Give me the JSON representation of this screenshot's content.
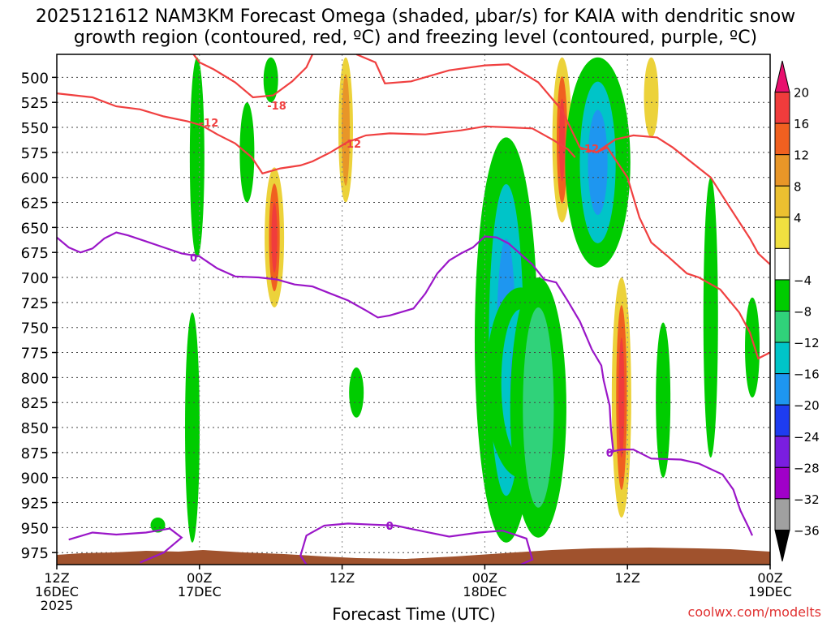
{
  "chart_data": {
    "type": "heatmap",
    "title_line1": "2025121612 NAM3KM Forecast Omega (shaded, μbar/s) for KAIA with dendritic snow",
    "title_line2": "growth region (contoured, red, ºC) and freezing level (contoured, purple, ºC)",
    "xlabel": "Forecast Time (UTC)",
    "credit": "coolwx.com/modelts",
    "x_ticks": [
      {
        "hours": 0,
        "line1": "12Z",
        "line2": "16DEC",
        "line3": "2025"
      },
      {
        "hours": 12,
        "line1": "00Z",
        "line2": "17DEC",
        "line3": ""
      },
      {
        "hours": 24,
        "line1": "12Z",
        "line2": "",
        "line3": ""
      },
      {
        "hours": 36,
        "line1": "00Z",
        "line2": "18DEC",
        "line3": ""
      },
      {
        "hours": 48,
        "line1": "12Z",
        "line2": "",
        "line3": ""
      },
      {
        "hours": 60,
        "line1": "00Z",
        "line2": "19DEC",
        "line3": ""
      }
    ],
    "xlim_hours": [
      0,
      60
    ],
    "ylim_mb": [
      987,
      477
    ],
    "y_ticks": [
      500,
      525,
      550,
      575,
      600,
      625,
      650,
      675,
      700,
      725,
      750,
      775,
      800,
      825,
      850,
      875,
      900,
      925,
      950,
      975
    ],
    "colorbar": {
      "labels": [
        "20",
        "16",
        "12",
        "8",
        "4",
        "−4",
        "−8",
        "−12",
        "−16",
        "−20",
        "−24",
        "−28",
        "−32",
        "−36"
      ],
      "colors": [
        "#e8106e",
        "#f03c3c",
        "#f06020",
        "#e89628",
        "#ecc030",
        "#f0e040",
        "#ffffff",
        "#00cc00",
        "#30d27a",
        "#00c4c8",
        "#1e96f0",
        "#1e3cf0",
        "#7a1ee0",
        "#a000c8",
        "#a0a0a0",
        "#000000"
      ]
    },
    "contour_labels": {
      "dgz_a": "-18",
      "dgz_b": "-12",
      "dgz_c": "-12",
      "dgz_d": "-12",
      "frz_a": "0",
      "frz_b": "0",
      "frz_c": "0",
      "frz_d": "0"
    },
    "omega_regions": [
      {
        "h": 11.8,
        "p0": 480,
        "p1": 680,
        "v": -5
      },
      {
        "h": 11.4,
        "p0": 735,
        "p1": 965,
        "v": -6
      },
      {
        "h": 8.5,
        "p0": 940,
        "p1": 955,
        "v": -5
      },
      {
        "h": 16.0,
        "p0": 525,
        "p1": 625,
        "v": -6
      },
      {
        "h": 18.0,
        "p0": 480,
        "p1": 525,
        "v": -5
      },
      {
        "h": 18.3,
        "p0": 590,
        "p1": 730,
        "v": 14
      },
      {
        "h": 24.3,
        "p0": 480,
        "p1": 625,
        "v": 8
      },
      {
        "h": 25.2,
        "p0": 790,
        "p1": 840,
        "v": -5
      },
      {
        "h": 37.8,
        "p0": 560,
        "p1": 965,
        "v": -12
      },
      {
        "h": 39.0,
        "p0": 710,
        "p1": 900,
        "v": -15
      },
      {
        "h": 40.5,
        "p0": 700,
        "p1": 960,
        "v": -9
      },
      {
        "h": 42.5,
        "p0": 480,
        "p1": 645,
        "v": 12
      },
      {
        "h": 45.5,
        "p0": 480,
        "p1": 690,
        "v": -13
      },
      {
        "h": 47.5,
        "p0": 700,
        "p1": 940,
        "v": 12
      },
      {
        "h": 50.0,
        "p0": 480,
        "p1": 560,
        "v": 6
      },
      {
        "h": 51.0,
        "p0": 745,
        "p1": 900,
        "v": -6
      },
      {
        "h": 55.0,
        "p0": 600,
        "p1": 880,
        "v": -5
      },
      {
        "h": 58.5,
        "p0": 720,
        "p1": 820,
        "v": -5
      }
    ],
    "dgz_contours": [
      {
        "label_key": "dgz_a",
        "label_hours": 18.5,
        "label_mb": 528,
        "points": [
          [
            21.5,
            477
          ],
          [
            21.0,
            490
          ],
          [
            19.8,
            504
          ],
          [
            18.2,
            518
          ],
          [
            16.5,
            520
          ],
          [
            15.0,
            505
          ],
          [
            13.2,
            492
          ],
          [
            12.0,
            485
          ],
          [
            11.5,
            477
          ]
        ]
      },
      {
        "label_key": "dgz_b",
        "label_hours": 12.8,
        "label_mb": 545,
        "points": [
          [
            0,
            516
          ],
          [
            3.0,
            520
          ],
          [
            5.0,
            529
          ],
          [
            7.0,
            532
          ],
          [
            9.0,
            539
          ],
          [
            11.0,
            544
          ],
          [
            12.2,
            548
          ],
          [
            13.5,
            557
          ],
          [
            15.0,
            566
          ],
          [
            16.4,
            580
          ],
          [
            17.3,
            596
          ],
          [
            18.8,
            591
          ],
          [
            20.5,
            588
          ],
          [
            21.5,
            584
          ],
          [
            23.0,
            575
          ],
          [
            24.4,
            565
          ],
          [
            26.0,
            558
          ],
          [
            28.0,
            556
          ],
          [
            31.0,
            557
          ],
          [
            34.0,
            553
          ],
          [
            36.0,
            549
          ],
          [
            38.0,
            550
          ],
          [
            40.0,
            551
          ],
          [
            41.8,
            563
          ],
          [
            43.0,
            572
          ],
          [
            43.6,
            580
          ]
        ]
      },
      {
        "label_key": "dgz_c",
        "label_hours": 44.8,
        "label_mb": 571,
        "points": [
          [
            45.5,
            574
          ],
          [
            47.0,
            562
          ],
          [
            48.5,
            558
          ],
          [
            50.5,
            560
          ],
          [
            51.8,
            570
          ],
          [
            53.5,
            586
          ],
          [
            55.0,
            600
          ],
          [
            56.5,
            628
          ],
          [
            58.3,
            661
          ],
          [
            59.0,
            676
          ],
          [
            60.0,
            687
          ]
        ]
      },
      {
        "label_key": "dgz_d",
        "label_hours": 24.8,
        "label_mb": 566,
        "points": [
          [
            25.2,
            477
          ],
          [
            26.8,
            485
          ],
          [
            27.6,
            506
          ],
          [
            29.8,
            504
          ],
          [
            33.0,
            493
          ],
          [
            36.0,
            488
          ],
          [
            38.0,
            487
          ],
          [
            40.5,
            505
          ],
          [
            42.5,
            533
          ],
          [
            44.0,
            570
          ],
          [
            45.4,
            575
          ],
          [
            46.3,
            570
          ],
          [
            48.0,
            600
          ],
          [
            49.0,
            640
          ],
          [
            50.0,
            665
          ],
          [
            51.5,
            680
          ],
          [
            53.0,
            696
          ],
          [
            54.0,
            700
          ],
          [
            55.8,
            712
          ],
          [
            57.4,
            735
          ],
          [
            58.3,
            755
          ],
          [
            59.0,
            781
          ],
          [
            60.0,
            775
          ]
        ]
      }
    ],
    "freezing_contours": [
      {
        "label_key": "frz_a",
        "label_hours": 11.5,
        "label_mb": 680,
        "points": [
          [
            0,
            660
          ],
          [
            1.0,
            670
          ],
          [
            2.0,
            675
          ],
          [
            3.0,
            671
          ],
          [
            4.0,
            661
          ],
          [
            5.0,
            655
          ],
          [
            6.0,
            658
          ],
          [
            7.5,
            664
          ],
          [
            9.0,
            670
          ],
          [
            10.5,
            676
          ],
          [
            12.0,
            679
          ],
          [
            13.5,
            691
          ],
          [
            15.0,
            699
          ],
          [
            17.0,
            700
          ],
          [
            18.5,
            702
          ],
          [
            20.0,
            707
          ],
          [
            21.5,
            709
          ],
          [
            23.0,
            716
          ],
          [
            24.5,
            723
          ],
          [
            26.0,
            733
          ],
          [
            27.0,
            740
          ],
          [
            28.0,
            738
          ],
          [
            30.0,
            731
          ],
          [
            31.0,
            716
          ],
          [
            32.0,
            696
          ],
          [
            33.0,
            683
          ],
          [
            34.0,
            676
          ],
          [
            35.0,
            670
          ],
          [
            36.0,
            659
          ],
          [
            37.0,
            660
          ],
          [
            38.0,
            666
          ],
          [
            40.0,
            687
          ],
          [
            41.0,
            702
          ],
          [
            42.0,
            705
          ],
          [
            43.0,
            724
          ],
          [
            44.0,
            744
          ],
          [
            45.0,
            772
          ],
          [
            45.8,
            788
          ],
          [
            46.0,
            803
          ],
          [
            46.5,
            828
          ],
          [
            46.6,
            850
          ],
          [
            46.8,
            873
          ]
        ]
      },
      {
        "label_key": "frz_b",
        "label_hours": 46.5,
        "label_mb": 875,
        "points": [
          [
            46.3,
            875
          ],
          [
            47.5,
            872
          ],
          [
            48.5,
            872
          ],
          [
            50.0,
            881
          ],
          [
            52.5,
            882
          ],
          [
            54.0,
            886
          ],
          [
            56.0,
            897
          ],
          [
            56.9,
            912
          ],
          [
            57.5,
            933
          ],
          [
            58.2,
            950
          ],
          [
            58.5,
            958
          ]
        ]
      },
      {
        "label_key": "frz_c",
        "label_hours": 28.0,
        "label_mb": 948,
        "points": [
          [
            1.0,
            962
          ],
          [
            3.0,
            955
          ],
          [
            5.0,
            957
          ],
          [
            7.5,
            955
          ],
          [
            9.5,
            951
          ],
          [
            10.5,
            960
          ],
          [
            9.0,
            975
          ],
          [
            7.0,
            985
          ]
        ]
      },
      {
        "label_key": "frz_d",
        "label_hours": 28.0,
        "label_mb": 948,
        "points": [
          [
            21.0,
            987
          ],
          [
            20.5,
            978
          ],
          [
            21.0,
            958
          ],
          [
            22.5,
            948
          ],
          [
            24.5,
            946
          ],
          [
            26.5,
            947
          ],
          [
            28.5,
            948
          ],
          [
            30.5,
            953
          ],
          [
            33.0,
            959
          ],
          [
            35.5,
            955
          ],
          [
            37.5,
            953
          ],
          [
            39.5,
            961
          ],
          [
            40.0,
            982
          ],
          [
            39.0,
            987
          ]
        ]
      }
    ]
  }
}
